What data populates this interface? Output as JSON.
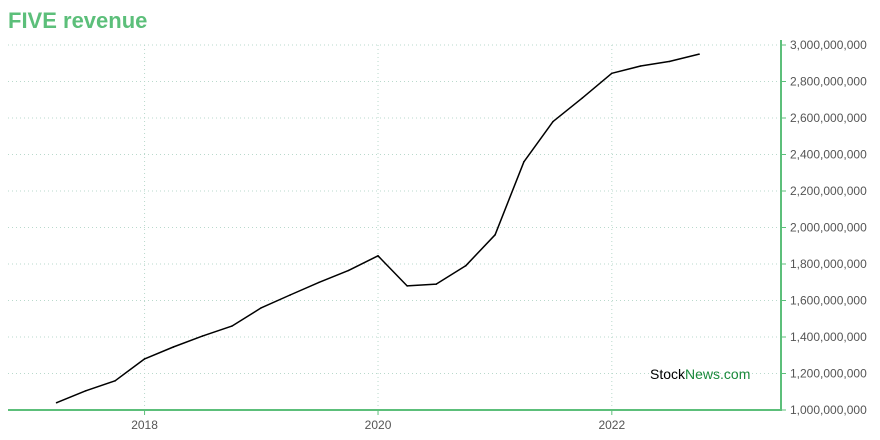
{
  "title": "FIVE revenue",
  "watermark": {
    "part1": "Stock",
    "part2": "News",
    "part3": ".com"
  },
  "colors": {
    "title": "#5cbf7a",
    "axis": "#5cbf7a",
    "grid": "#b9d9cc",
    "line": "#000000",
    "watermark_accent": "#1a8a3c"
  },
  "chart_data": {
    "type": "line",
    "title": "FIVE revenue",
    "xlabel": "",
    "ylabel": "",
    "grid": true,
    "y_axis_side": "right",
    "xlim": [
      "2016-10-31",
      "2023-06-14"
    ],
    "ylim": [
      1000000000,
      3000000000
    ],
    "x_ticks": [
      "2018",
      "2020",
      "2022"
    ],
    "x_tick_dates": [
      "2018-01-01",
      "2020-01-01",
      "2022-01-01"
    ],
    "y_ticks": [
      1000000000,
      1200000000,
      1400000000,
      1600000000,
      1800000000,
      2000000000,
      2200000000,
      2400000000,
      2600000000,
      2800000000,
      3000000000
    ],
    "y_tick_labels": [
      "1,000,000,000",
      "1,200,000,000",
      "1,400,000,000",
      "1,600,000,000",
      "1,800,000,000",
      "2,000,000,000",
      "2,200,000,000",
      "2,400,000,000",
      "2,600,000,000",
      "2,800,000,000",
      "3,000,000,000"
    ],
    "series": [
      {
        "color": "#000000",
        "x": [
          "2017-04-01",
          "2017-07-01",
          "2017-10-01",
          "2018-01-01",
          "2018-04-01",
          "2018-07-01",
          "2018-10-01",
          "2019-01-01",
          "2019-04-01",
          "2019-07-01",
          "2019-10-01",
          "2020-01-01",
          "2020-04-01",
          "2020-07-01",
          "2020-10-01",
          "2021-01-01",
          "2021-04-01",
          "2021-07-01",
          "2021-10-01",
          "2022-01-01",
          "2022-04-01",
          "2022-07-01",
          "2022-10-01"
        ],
        "y": [
          1040000000,
          1105000000,
          1160000000,
          1280000000,
          1345000000,
          1405000000,
          1460000000,
          1560000000,
          1630000000,
          1700000000,
          1765000000,
          1845000000,
          1680000000,
          1690000000,
          1790000000,
          1960000000,
          2360000000,
          2580000000,
          2710000000,
          2845000000,
          2885000000,
          2910000000,
          2950000000
        ]
      }
    ]
  }
}
